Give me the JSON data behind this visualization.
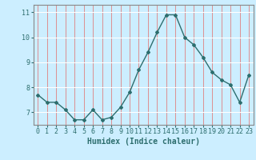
{
  "x": [
    0,
    1,
    2,
    3,
    4,
    5,
    6,
    7,
    8,
    9,
    10,
    11,
    12,
    13,
    14,
    15,
    16,
    17,
    18,
    19,
    20,
    21,
    22,
    23
  ],
  "y": [
    7.7,
    7.4,
    7.4,
    7.1,
    6.7,
    6.7,
    7.1,
    6.7,
    6.8,
    7.2,
    7.8,
    8.7,
    9.4,
    10.2,
    10.9,
    10.9,
    10.0,
    9.7,
    9.2,
    8.6,
    8.3,
    8.1,
    7.4,
    8.5
  ],
  "line_color": "#2d6e6e",
  "marker": "D",
  "marker_size": 2.0,
  "linewidth": 1.0,
  "bg_color": "#cceeff",
  "grid_color_h": "#ffffff",
  "grid_color_v": "#e08080",
  "xlabel": "Humidex (Indice chaleur)",
  "xlabel_fontsize": 7,
  "tick_fontsize": 6,
  "ylim": [
    6.5,
    11.3
  ],
  "xlim": [
    -0.5,
    23.5
  ],
  "yticks": [
    7,
    8,
    9,
    10,
    11
  ],
  "xticks": [
    0,
    1,
    2,
    3,
    4,
    5,
    6,
    7,
    8,
    9,
    10,
    11,
    12,
    13,
    14,
    15,
    16,
    17,
    18,
    19,
    20,
    21,
    22,
    23
  ],
  "spine_color": "#888888",
  "tick_color": "#2d6e6e"
}
